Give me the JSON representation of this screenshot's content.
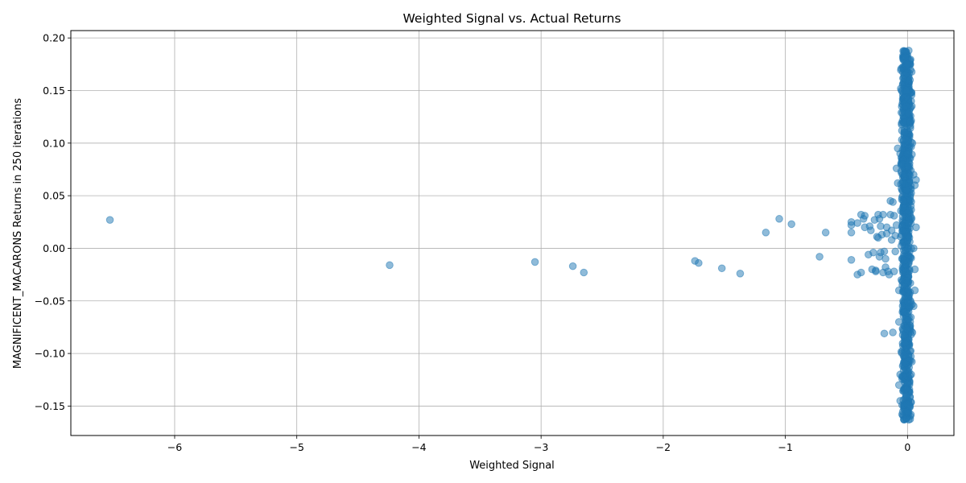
{
  "chart_data": {
    "type": "scatter",
    "title": "Weighted Signal vs. Actual Returns",
    "xlabel": "Weighted Signal",
    "ylabel": "MAGNIFICENT_MACARONS Returns in 250 iterations",
    "xlim": [
      -6.85,
      0.38
    ],
    "ylim": [
      -0.178,
      0.207
    ],
    "xticks": [
      -6,
      -5,
      -4,
      -3,
      -2,
      -1,
      0
    ],
    "xtick_labels": [
      "−6",
      "−5",
      "−4",
      "−3",
      "−2",
      "−1",
      "0"
    ],
    "yticks": [
      -0.15,
      -0.1,
      -0.05,
      0.0,
      0.05,
      0.1,
      0.15,
      0.2
    ],
    "ytick_labels": [
      "−0.15",
      "−0.10",
      "−0.05",
      "0.00",
      "0.05",
      "0.10",
      "0.15",
      "0.20"
    ],
    "grid": true,
    "point_color": "#1f77b4",
    "point_alpha": 0.5,
    "series": [
      {
        "points": [
          [
            -6.53,
            0.027
          ],
          [
            -4.24,
            -0.016
          ],
          [
            -3.05,
            -0.013
          ],
          [
            -2.74,
            -0.017
          ],
          [
            -2.65,
            -0.023
          ],
          [
            -1.74,
            -0.012
          ],
          [
            -1.71,
            -0.014
          ],
          [
            -1.52,
            -0.019
          ],
          [
            -1.37,
            -0.024
          ],
          [
            -1.16,
            0.015
          ],
          [
            -1.05,
            0.028
          ],
          [
            -0.95,
            0.023
          ],
          [
            -0.72,
            -0.008
          ],
          [
            -0.67,
            0.015
          ],
          [
            -0.46,
            0.025
          ],
          [
            -0.46,
            0.022
          ],
          [
            -0.46,
            0.015
          ],
          [
            -0.46,
            -0.011
          ],
          [
            -0.41,
            0.024
          ],
          [
            -0.41,
            -0.025
          ],
          [
            -0.38,
            0.032
          ],
          [
            -0.38,
            -0.023
          ],
          [
            -0.36,
            0.028
          ],
          [
            -0.35,
            0.031
          ],
          [
            -0.35,
            0.02
          ],
          [
            -0.32,
            -0.006
          ],
          [
            -0.31,
            0.021
          ],
          [
            -0.3,
            0.017
          ],
          [
            -0.29,
            -0.02
          ],
          [
            -0.28,
            -0.004
          ],
          [
            -0.27,
            0.027
          ],
          [
            -0.26,
            -0.022
          ],
          [
            -0.26,
            -0.021
          ],
          [
            -0.25,
            0.011
          ],
          [
            -0.24,
            0.032
          ],
          [
            -0.24,
            0.01
          ],
          [
            -0.23,
            0.028
          ],
          [
            -0.23,
            -0.008
          ],
          [
            -0.22,
            0.021
          ],
          [
            -0.22,
            -0.004
          ],
          [
            -0.21,
            0.013
          ],
          [
            -0.2,
            0.032
          ],
          [
            -0.2,
            -0.023
          ],
          [
            -0.19,
            -0.081
          ],
          [
            -0.19,
            -0.003
          ],
          [
            -0.18,
            -0.018
          ],
          [
            -0.18,
            -0.01
          ],
          [
            -0.17,
            0.02
          ],
          [
            -0.17,
            0.014
          ],
          [
            -0.16,
            -0.022
          ],
          [
            -0.15,
            -0.025
          ],
          [
            -0.14,
            0.032
          ],
          [
            -0.14,
            0.045
          ],
          [
            -0.13,
            0.017
          ],
          [
            -0.13,
            0.008
          ],
          [
            -0.12,
            -0.08
          ],
          [
            -0.12,
            0.044
          ],
          [
            -0.11,
            0.031
          ],
          [
            -0.11,
            -0.022
          ],
          [
            -0.1,
            0.012
          ],
          [
            -0.1,
            -0.003
          ],
          [
            -0.09,
            0.022
          ],
          [
            -0.09,
            0.076
          ],
          [
            -0.08,
            0.062
          ],
          [
            -0.08,
            0.095
          ],
          [
            -0.07,
            -0.04
          ],
          [
            -0.07,
            -0.07
          ],
          [
            -0.06,
            -0.12
          ],
          [
            -0.06,
            0.09
          ],
          [
            -0.05,
            0.129
          ],
          [
            -0.05,
            -0.03
          ],
          [
            -0.04,
            0.07
          ],
          [
            -0.04,
            -0.01
          ],
          [
            -0.03,
            0.045
          ],
          [
            -0.03,
            -0.06
          ],
          [
            -0.02,
            0.11
          ],
          [
            -0.02,
            -0.09
          ],
          [
            -0.01,
            0.15
          ],
          [
            -0.01,
            -0.14
          ],
          [
            0.0,
            0.175
          ],
          [
            0.0,
            -0.155
          ],
          [
            0.01,
            0.188
          ],
          [
            0.01,
            -0.163
          ],
          [
            0.02,
            0.16
          ],
          [
            0.02,
            -0.15
          ],
          [
            0.03,
            0.14
          ],
          [
            0.03,
            -0.12
          ],
          [
            0.04,
            0.1
          ],
          [
            0.04,
            -0.08
          ],
          [
            0.05,
            0.07
          ],
          [
            0.05,
            -0.055
          ],
          [
            0.06,
            0.06
          ],
          [
            0.06,
            -0.04
          ],
          [
            0.07,
            0.065
          ],
          [
            0.07,
            0.02
          ],
          [
            0.06,
            -0.02
          ],
          [
            0.05,
            0.0
          ],
          [
            -0.06,
            -0.145
          ],
          [
            -0.07,
            -0.13
          ]
        ],
        "band": {
          "x_range": [
            -0.09,
            0.07
          ],
          "y_range": [
            -0.163,
            0.189
          ]
        }
      }
    ]
  }
}
